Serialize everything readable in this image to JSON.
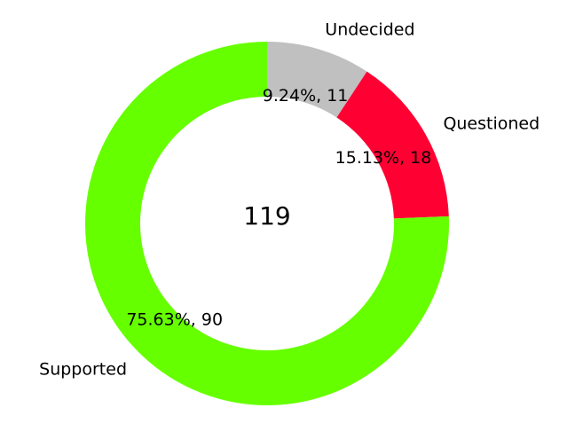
{
  "chart_data": {
    "type": "pie",
    "style": "donut",
    "center_label": "119",
    "start_angle_deg": 90,
    "direction": "clockwise",
    "slices": [
      {
        "label": "Undecided",
        "value": 11,
        "percent": "9.24%",
        "color": "#c0c0c0",
        "data_label": "9.24%, 11"
      },
      {
        "label": "Questioned",
        "value": 18,
        "percent": "15.13%",
        "color": "#ff0033",
        "data_label": "15.13%, 18"
      },
      {
        "label": "Supported",
        "value": 90,
        "percent": "75.63%",
        "color": "#66ff00",
        "data_label": "75.63%, 90"
      }
    ]
  }
}
